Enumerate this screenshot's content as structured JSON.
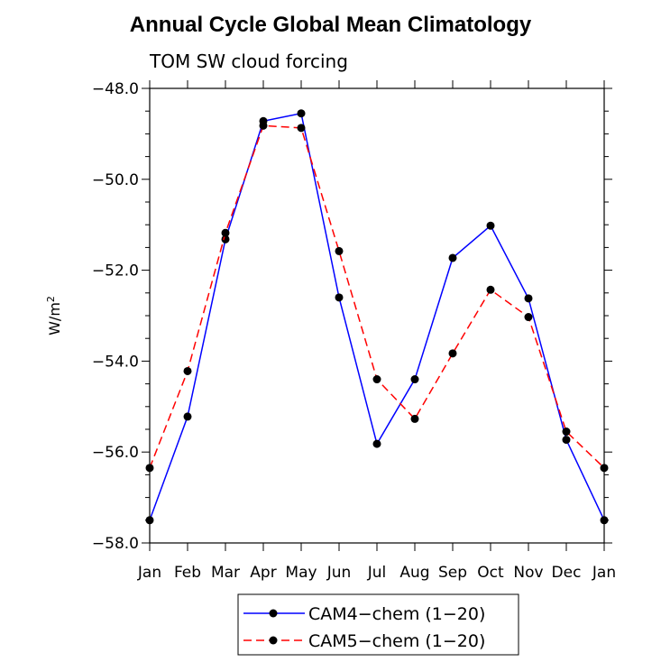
{
  "chart_data": {
    "type": "line",
    "title": "Annual Cycle Global Mean Climatology",
    "subtitle": "TOM SW cloud forcing",
    "ylabel": "W/m",
    "ylabel_sup": "2",
    "xlabel": "",
    "categories": [
      "Jan",
      "Feb",
      "Mar",
      "Apr",
      "May",
      "Jun",
      "Jul",
      "Aug",
      "Sep",
      "Oct",
      "Nov",
      "Dec",
      "Jan"
    ],
    "ylim": [
      -58.0,
      -48.0
    ],
    "yticks": [
      -58.0,
      -56.0,
      -54.0,
      -52.0,
      -50.0,
      -48.0
    ],
    "ytick_labels": [
      "−58.0",
      "−56.0",
      "−54.0",
      "−52.0",
      "−50.0",
      "−48.0"
    ],
    "grid": false,
    "legend_position": "bottom-center",
    "series": [
      {
        "name": "CAM4−chem (1−20)",
        "color": "#0000ff",
        "dash": "solid",
        "values": [
          -57.5,
          -55.22,
          -51.32,
          -48.72,
          -48.55,
          -52.6,
          -55.82,
          -54.4,
          -51.73,
          -51.02,
          -52.62,
          -55.73,
          -57.5
        ]
      },
      {
        "name": "CAM5−chem (1−20)",
        "color": "#ff0000",
        "dash": "dashed",
        "values": [
          -56.35,
          -54.22,
          -51.18,
          -48.82,
          -48.87,
          -51.58,
          -54.4,
          -55.27,
          -53.83,
          -52.43,
          -53.03,
          -55.55,
          -56.35
        ]
      }
    ]
  }
}
